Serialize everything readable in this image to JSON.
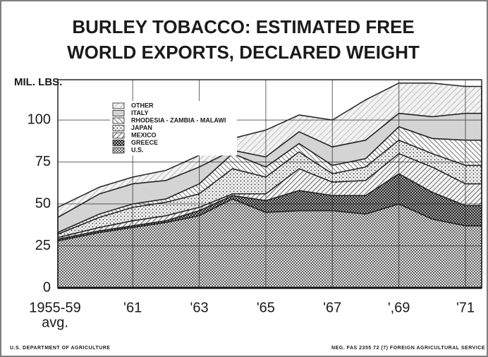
{
  "chart_data": {
    "type": "stacked_area",
    "title": [
      "BURLEY TOBACCO: ESTIMATED FREE",
      "WORLD EXPORTS, DECLARED WEIGHT"
    ],
    "y_label": "MIL. LBS.",
    "categories": [
      "1955-59",
      null,
      "'61",
      null,
      "'63",
      null,
      "'65",
      null,
      "'67",
      null,
      "',69",
      null,
      "'71"
    ],
    "first_category_note": "avg.",
    "series": [
      {
        "name": "U.S.",
        "color": "#444",
        "pattern": "dots-dense",
        "values": [
          28,
          33,
          36,
          39,
          43,
          53,
          45,
          46,
          46,
          44,
          50,
          41,
          37
        ]
      },
      {
        "name": "GREECE",
        "color": "#111",
        "pattern": "checker",
        "values": [
          1,
          1,
          1,
          1,
          3,
          2,
          7,
          12,
          9,
          11,
          18,
          16,
          12
        ]
      },
      {
        "name": "MEXICO",
        "color": "#555",
        "pattern": "hatch-fwd",
        "values": [
          1,
          2,
          3,
          3,
          2,
          1,
          4,
          13,
          8,
          9,
          12,
          15,
          13
        ]
      },
      {
        "name": "JAPAN",
        "color": "#555",
        "pattern": "dots-light",
        "values": [
          2,
          6,
          8,
          8,
          8,
          15,
          10,
          10,
          5,
          8,
          8,
          8,
          11
        ]
      },
      {
        "name": "RHODESIA - ZAMBIA - MALAWI",
        "color": "#555",
        "pattern": "hatch-back",
        "values": [
          1,
          2,
          2,
          2,
          6,
          9,
          6,
          5,
          5,
          5,
          8,
          9,
          15
        ]
      },
      {
        "name": "ITALY",
        "color": "#cfcfcf",
        "pattern": "plain",
        "values": [
          9,
          12,
          12,
          11,
          10,
          2,
          6,
          7,
          11,
          11,
          8,
          13,
          16
        ]
      },
      {
        "name": "OTHER",
        "color": "#999",
        "pattern": "hatch-light",
        "values": [
          6,
          4,
          4,
          6,
          7,
          7,
          16,
          10,
          16,
          24,
          18,
          20,
          16
        ]
      }
    ],
    "ylim": [
      0,
      124
    ],
    "yticks": [
      0,
      25,
      50,
      75,
      100
    ],
    "grid": true,
    "legend": "upper left",
    "footer_left": "U.S. DEPARTMENT OF AGRICULTURE",
    "footer_right": "NEG. FAS 2355   72 (7)    FOREIGN AGRICULTURAL SERVICE"
  }
}
